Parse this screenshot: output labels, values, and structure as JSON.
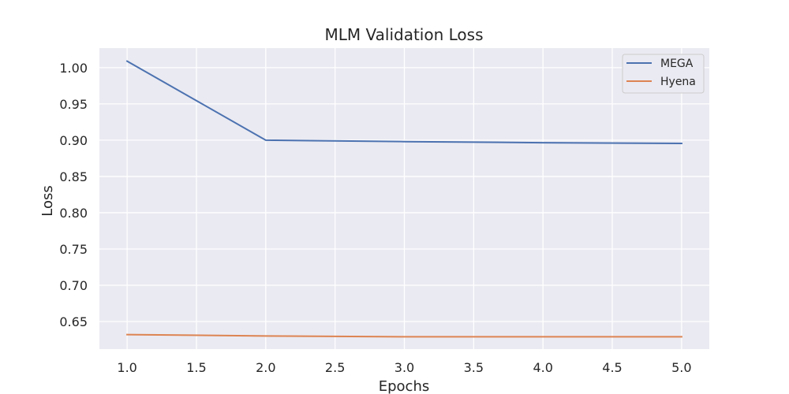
{
  "chart_data": {
    "type": "line",
    "title": "MLM Validation Loss",
    "xlabel": "Epochs",
    "ylabel": "Loss",
    "x": [
      1,
      2,
      3,
      4,
      5
    ],
    "xlim": [
      0.8,
      5.2
    ],
    "ylim": [
      0.612,
      1.027
    ],
    "x_ticks": [
      "1.0",
      "1.5",
      "2.0",
      "2.5",
      "3.0",
      "3.5",
      "4.0",
      "4.5",
      "5.0"
    ],
    "y_ticks": [
      "0.65",
      "0.70",
      "0.75",
      "0.80",
      "0.85",
      "0.90",
      "0.95",
      "1.00"
    ],
    "grid": true,
    "legend_position": "top-right",
    "colors": {
      "plot_background": "#eaeaf2",
      "grid": "#ffffff"
    },
    "series": [
      {
        "name": "MEGA",
        "color": "#4c72b0",
        "values": [
          1.009,
          0.9,
          0.898,
          0.8965,
          0.8955
        ]
      },
      {
        "name": "Hyena",
        "color": "#dd8452",
        "values": [
          0.632,
          0.63,
          0.629,
          0.629,
          0.629
        ]
      }
    ]
  }
}
